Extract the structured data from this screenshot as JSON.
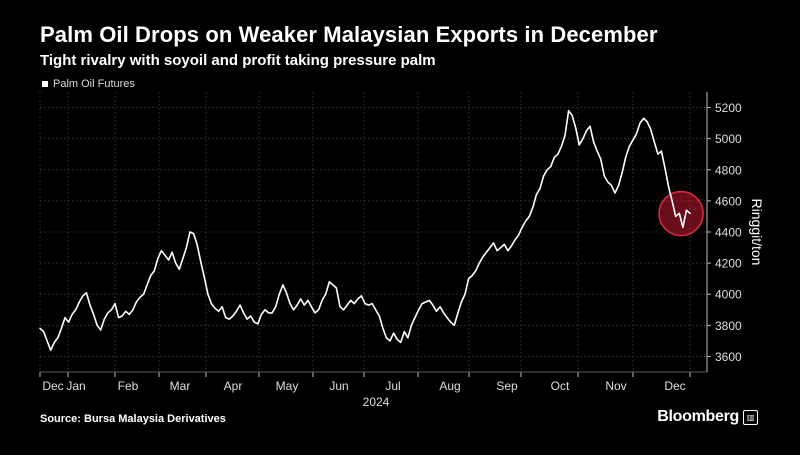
{
  "header": {
    "title": "Palm Oil Drops on Weaker Malaysian Exports in December",
    "subtitle": "Tight rivalry with soyoil and profit taking pressure palm"
  },
  "footer": {
    "source": "Source: Bursa Malaysia Derivatives",
    "brand": "Bloomberg"
  },
  "colors": {
    "background": "#000000",
    "line": "#ffffff",
    "grid": "#555555",
    "highlight": "#c0182f"
  },
  "chart_data": {
    "type": "line",
    "title": "Palm Oil Drops on Weaker Malaysian Exports in December",
    "subtitle": "Tight rivalry with soyoil and profit taking pressure palm",
    "ylabel": "Ringgit/ton",
    "xlabel": "2024",
    "ylim": [
      3500,
      5300
    ],
    "y_ticks": [
      3600,
      3800,
      4000,
      4200,
      4400,
      4600,
      4800,
      5000,
      5200
    ],
    "x_ticks": [
      "Dec",
      "Jan",
      "Feb",
      "Mar",
      "Apr",
      "May",
      "Jun",
      "Jul",
      "Aug",
      "Sep",
      "Oct",
      "Nov",
      "Dec"
    ],
    "grid": true,
    "legend": "top-left",
    "y_axis_side": "right",
    "series": [
      {
        "name": "Palm Oil Futures",
        "values": [
          3780,
          3760,
          3700,
          3640,
          3690,
          3720,
          3780,
          3850,
          3820,
          3870,
          3900,
          3950,
          3990,
          4010,
          3930,
          3870,
          3800,
          3770,
          3840,
          3880,
          3900,
          3940,
          3850,
          3860,
          3890,
          3870,
          3900,
          3950,
          3980,
          4000,
          4060,
          4120,
          4150,
          4230,
          4280,
          4250,
          4220,
          4270,
          4200,
          4160,
          4230,
          4300,
          4400,
          4390,
          4320,
          4210,
          4110,
          4000,
          3940,
          3910,
          3890,
          3920,
          3850,
          3840,
          3860,
          3890,
          3930,
          3880,
          3840,
          3860,
          3820,
          3810,
          3870,
          3900,
          3880,
          3880,
          3920,
          4000,
          4060,
          4010,
          3940,
          3900,
          3930,
          3970,
          3930,
          3960,
          3920,
          3880,
          3900,
          3960,
          4000,
          4080,
          4060,
          4040,
          3920,
          3900,
          3930,
          3960,
          3940,
          3970,
          3990,
          3940,
          3930,
          3940,
          3900,
          3860,
          3780,
          3720,
          3700,
          3750,
          3710,
          3690,
          3760,
          3720,
          3800,
          3850,
          3900,
          3940,
          3950,
          3960,
          3930,
          3890,
          3920,
          3880,
          3850,
          3820,
          3800,
          3880,
          3950,
          4000,
          4100,
          4120,
          4150,
          4200,
          4240,
          4270,
          4300,
          4330,
          4280,
          4300,
          4320,
          4280,
          4310,
          4350,
          4380,
          4430,
          4470,
          4500,
          4560,
          4640,
          4680,
          4760,
          4800,
          4820,
          4880,
          4900,
          4950,
          5020,
          5180,
          5150,
          5070,
          4960,
          5000,
          5050,
          5080,
          4980,
          4920,
          4870,
          4760,
          4720,
          4700,
          4650,
          4700,
          4780,
          4880,
          4950,
          4990,
          5030,
          5100,
          5130,
          5110,
          5060,
          4980,
          4900,
          4920,
          4810,
          4690,
          4600,
          4500,
          4520,
          4430,
          4540,
          4520
        ]
      }
    ]
  }
}
